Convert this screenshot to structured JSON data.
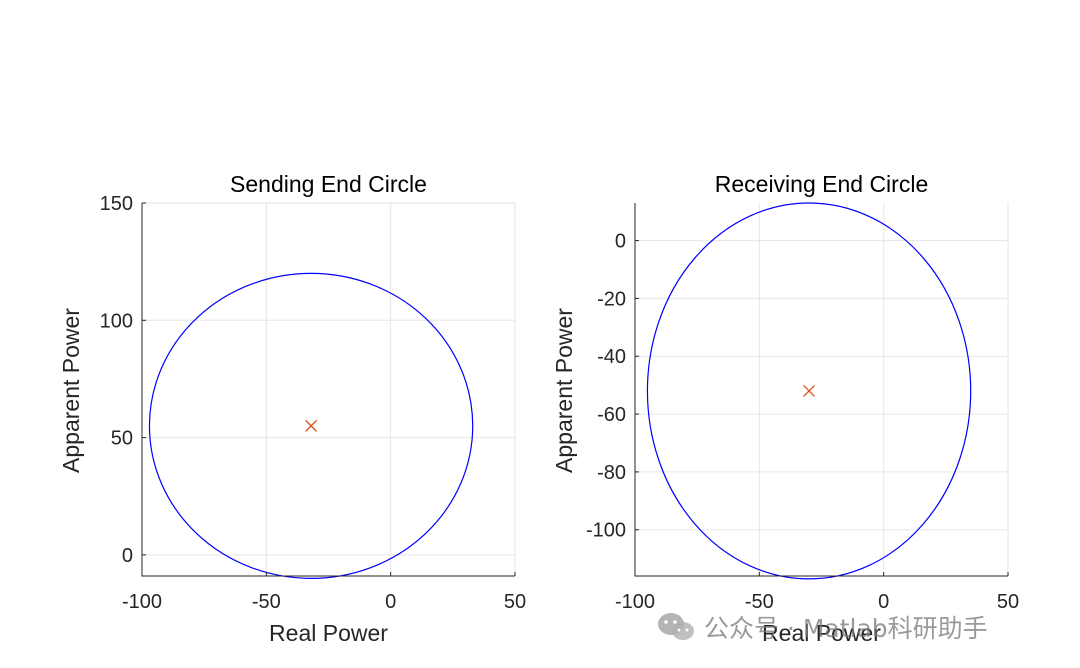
{
  "chart_data": [
    {
      "type": "line",
      "title": "Sending End Circle",
      "xlabel": "Real Power",
      "ylabel": "Apparent Power",
      "xlim": [
        -100,
        50
      ],
      "ylim": [
        -9,
        150
      ],
      "xticks": [
        -100,
        -50,
        0,
        50
      ],
      "yticks": [
        0,
        50,
        100,
        150
      ],
      "grid": true,
      "circle": {
        "center": [
          -32,
          55
        ],
        "radius_x": 65,
        "radius_y": 65,
        "color": "#0000ff"
      },
      "center_marker": {
        "x": -32,
        "y": 55,
        "marker": "x",
        "color": "#d95319"
      }
    },
    {
      "type": "line",
      "title": "Receiving End Circle",
      "xlabel": "Real Power",
      "ylabel": "Apparent Power",
      "xlim": [
        -100,
        50
      ],
      "ylim": [
        -116,
        13
      ],
      "xticks": [
        -100,
        -50,
        0,
        50
      ],
      "yticks": [
        0,
        -20,
        -40,
        -60,
        -80,
        -100
      ],
      "grid": true,
      "circle": {
        "center": [
          -30,
          -52
        ],
        "radius_x": 65,
        "radius_y": 65,
        "color": "#0000ff"
      },
      "center_marker": {
        "x": -30,
        "y": -52,
        "marker": "x",
        "color": "#d95319"
      }
    }
  ],
  "watermark": {
    "text": "公众号 · Matlab科研助手",
    "icon": "wechat-icon"
  }
}
